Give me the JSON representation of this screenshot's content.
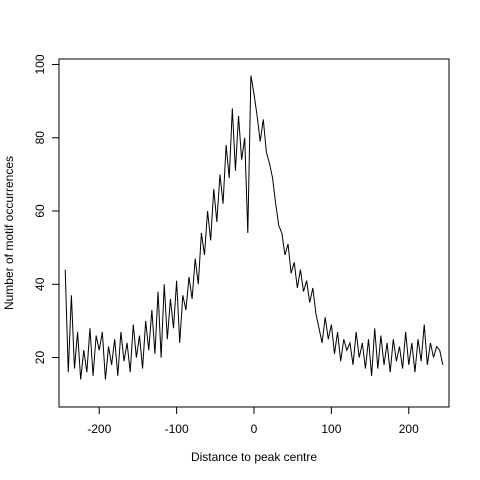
{
  "chart_data": {
    "type": "line",
    "xlabel": "Distance to peak centre",
    "ylabel": "Number of motif occurrences",
    "xlim": [
      -252,
      252
    ],
    "ylim": [
      6.5,
      101.5
    ],
    "x_ticks": [
      -200,
      -100,
      0,
      100,
      200
    ],
    "y_ticks": [
      20,
      40,
      60,
      80,
      100
    ],
    "grid": false,
    "frame": true,
    "series": [
      {
        "color": "#000000",
        "x": [
          -244,
          -240,
          -236,
          -232,
          -228,
          -224,
          -220,
          -216,
          -212,
          -208,
          -204,
          -200,
          -196,
          -192,
          -188,
          -184,
          -180,
          -176,
          -172,
          -168,
          -164,
          -160,
          -156,
          -152,
          -148,
          -144,
          -140,
          -136,
          -132,
          -128,
          -124,
          -120,
          -116,
          -112,
          -108,
          -104,
          -100,
          -96,
          -92,
          -88,
          -84,
          -80,
          -76,
          -72,
          -68,
          -64,
          -60,
          -56,
          -52,
          -48,
          -44,
          -40,
          -36,
          -32,
          -28,
          -24,
          -20,
          -16,
          -12,
          -8,
          -4,
          0,
          4,
          8,
          12,
          16,
          20,
          24,
          28,
          32,
          36,
          40,
          44,
          48,
          52,
          56,
          60,
          64,
          68,
          72,
          76,
          80,
          84,
          88,
          92,
          96,
          100,
          104,
          108,
          112,
          116,
          120,
          124,
          128,
          132,
          136,
          140,
          144,
          148,
          152,
          156,
          160,
          164,
          168,
          172,
          176,
          180,
          184,
          188,
          192,
          196,
          200,
          204,
          208,
          212,
          216,
          220,
          224,
          228,
          232,
          236,
          240,
          244
        ],
        "values": [
          44,
          16,
          37,
          17,
          27,
          14,
          22,
          16,
          28,
          15,
          26,
          22,
          27,
          14,
          23,
          18,
          25,
          15,
          27,
          19,
          24,
          16,
          29,
          20,
          26,
          17,
          30,
          22,
          33,
          21,
          38,
          20,
          40,
          25,
          36,
          28,
          41,
          24,
          37,
          33,
          42,
          36,
          47,
          40,
          54,
          48,
          60,
          52,
          66,
          57,
          70,
          62,
          78,
          69,
          88,
          71,
          86,
          74,
          80,
          54,
          97,
          92,
          86,
          79,
          85,
          76,
          73,
          69,
          62,
          56,
          54,
          48,
          51,
          43,
          46,
          39,
          44,
          38,
          41,
          35,
          39,
          32,
          28,
          24,
          31,
          25,
          29,
          21,
          27,
          19,
          25,
          22,
          24,
          18,
          27,
          20,
          24,
          17,
          25,
          15,
          28,
          17,
          26,
          18,
          24,
          16,
          25,
          19,
          23,
          17,
          27,
          18,
          24,
          16,
          25,
          19,
          29,
          18,
          24,
          20,
          23,
          22,
          18
        ]
      }
    ]
  }
}
